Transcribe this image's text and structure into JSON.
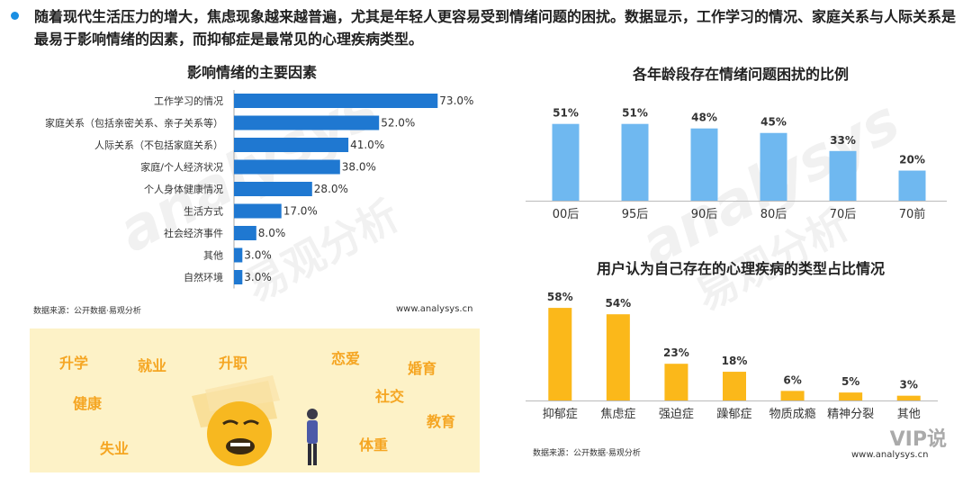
{
  "intro": {
    "line": "随着现代生活压力的增大，焦虑现象越来越普遍，尤其是年轻人更容易受到情绪问题的困扰。数据显示，工作学习的情况、家庭关系与人际关系是最易于影响情绪的因素，而抑郁症是最常见的心理疾病类型。"
  },
  "watermark": {
    "brand": "analysys",
    "cn": "易观分析"
  },
  "panel_left": {
    "source": "数据来源：公开数据·易观分析",
    "site": "www.analysys.cn"
  },
  "panel_right": {
    "source": "数据来源：公开数据·易观分析",
    "site": "www.analysys.cn"
  },
  "keywords": {
    "words": [
      "升学",
      "就业",
      "升职",
      "恋爱",
      "婚育",
      "健康",
      "社交",
      "教育",
      "失业",
      "体重"
    ],
    "color": "#f5a623",
    "background": "#fdf2c7"
  },
  "sticker": {
    "label": "VIP说"
  },
  "chart_data": [
    {
      "type": "bar",
      "orientation": "horizontal",
      "title": "影响情绪的主要因素",
      "categories": [
        "工作学习的情况",
        "家庭关系（包括亲密关系、亲子关系等）",
        "人际关系（不包括家庭关系）",
        "家庭/个人经济状况",
        "个人身体健康情况",
        "生活方式",
        "社会经济事件",
        "其他",
        "自然环境"
      ],
      "values": [
        73.0,
        52.0,
        41.0,
        38.0,
        28.0,
        17.0,
        8.0,
        3.0,
        3.0
      ],
      "value_labels": [
        "73.0%",
        "52.0%",
        "41.0%",
        "38.0%",
        "28.0%",
        "17.0%",
        "8.0%",
        "3.0%",
        "3.0%"
      ],
      "xlim": [
        0,
        100
      ],
      "color": "#1f78d1",
      "grid": false
    },
    {
      "type": "bar",
      "title": "各年龄段存在情绪问题困扰的比例",
      "categories": [
        "00后",
        "95后",
        "90后",
        "80后",
        "70后",
        "70前"
      ],
      "values": [
        51,
        51,
        48,
        45,
        33,
        20
      ],
      "value_labels": [
        "51%",
        "51%",
        "48%",
        "45%",
        "33%",
        "20%"
      ],
      "ylim": [
        0,
        55
      ],
      "color": "#6fb8f0",
      "grid": false
    },
    {
      "type": "bar",
      "title": "用户认为自己存在的心理疾病的类型占比情况",
      "categories": [
        "抑郁症",
        "焦虑症",
        "强迫症",
        "躁郁症",
        "物质成瘾",
        "精神分裂",
        "其他"
      ],
      "values": [
        58,
        54,
        23,
        18,
        6,
        5,
        3
      ],
      "value_labels": [
        "58%",
        "54%",
        "23%",
        "18%",
        "6%",
        "5%",
        "3%"
      ],
      "ylim": [
        0,
        62
      ],
      "color": "#fbb81a",
      "grid": false
    }
  ]
}
